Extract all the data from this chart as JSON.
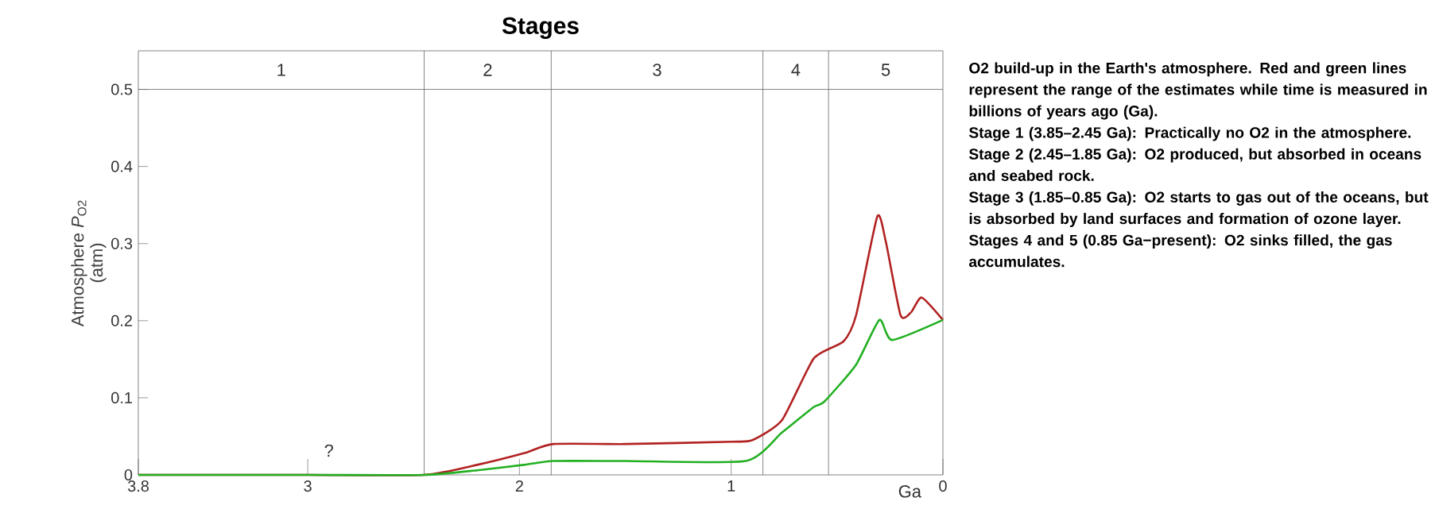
{
  "chart_data": {
    "type": "line",
    "title": "Stages",
    "xlabel": "Ga",
    "ylabel": "Atmosphere *P*$_{O2}$ (atm)",
    "xlim": [
      3.8,
      0
    ],
    "ylim": [
      0,
      0.55
    ],
    "xticks": [
      3.8,
      3,
      2,
      1,
      0
    ],
    "yticks": [
      0,
      0.1,
      0.2,
      0.3,
      0.4,
      0.5
    ],
    "series": [
      {
        "color": "#b22222",
        "x": [
          3.8,
          3.0,
          2.45,
          2.2,
          1.98,
          1.84,
          1.5,
          1.0,
          0.9,
          0.76,
          0.61,
          0.47,
          0.41,
          0.31,
          0.27,
          0.2,
          0.15,
          0.1,
          0
        ],
        "values": [
          0,
          0,
          0,
          0.013,
          0.028,
          0.04,
          0.04,
          0.043,
          0.045,
          0.071,
          0.151,
          0.173,
          0.207,
          0.335,
          0.303,
          0.207,
          0.211,
          0.23,
          0.201
        ]
      },
      {
        "color": "#22b022",
        "x": [
          3.8,
          3.0,
          2.45,
          2.2,
          1.98,
          1.84,
          1.5,
          0.93,
          0.76,
          0.61,
          0.56,
          0.41,
          0.3,
          0.24,
          0
        ],
        "values": [
          0,
          0,
          0,
          0.006,
          0.013,
          0.018,
          0.018,
          0.018,
          0.055,
          0.088,
          0.095,
          0.143,
          0.201,
          0.175,
          0.201
        ]
      }
    ],
    "ref_lines": [
      {
        "axis": "y",
        "value": 0.5
      },
      {
        "axis": "x",
        "value": 2.45
      },
      {
        "axis": "x",
        "value": 1.85
      },
      {
        "axis": "x",
        "value": 0.85
      },
      {
        "axis": "x",
        "value": 0.54
      }
    ],
    "annotations": [
      "O2 build-up in the Earth's atmosphere. Red and green lines represent the range of the estimates while time is measured in billions of years ago (Ga).",
      "Stage 1 (3.85–2.45 Ga): Practically no O2 in the atmosphere.",
      "Stage 2 (2.45–1.85 Ga): O2 produced, but absorbed in oceans and seabed rock.",
      "Stage 3 (1.85–0.85 Ga): O2 starts to gas out of the oceans, but is absorbed by land surfaces and formation of ozone layer.",
      "Stages 4 and 5 (0.85 Ga−present): O2 sinks filled, the gas accumulates.",
      "1",
      "2",
      "3",
      "4",
      "5",
      {
        "text": "?",
        "x": 2.9,
        "y": 0
      }
    ]
  }
}
